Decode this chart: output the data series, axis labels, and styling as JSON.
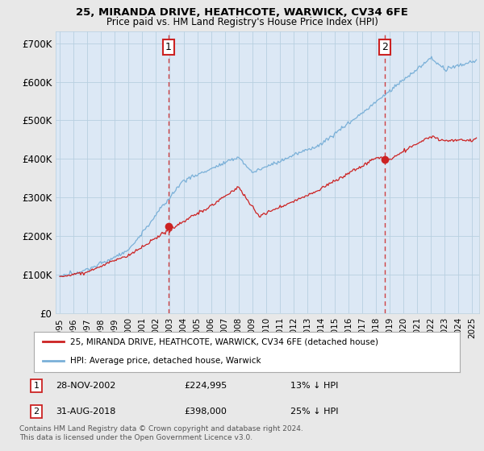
{
  "title": "25, MIRANDA DRIVE, HEATHCOTE, WARWICK, CV34 6FE",
  "subtitle": "Price paid vs. HM Land Registry's House Price Index (HPI)",
  "ylabel_ticks": [
    "£0",
    "£100K",
    "£200K",
    "£300K",
    "£400K",
    "£500K",
    "£600K",
    "£700K"
  ],
  "ytick_vals": [
    0,
    100000,
    200000,
    300000,
    400000,
    500000,
    600000,
    700000
  ],
  "ylim": [
    0,
    730000
  ],
  "xlim_start": 1994.7,
  "xlim_end": 2025.5,
  "background_color": "#e8e8e8",
  "plot_bg_color": "#dce8f5",
  "hpi_color": "#7ab0d8",
  "price_color": "#cc2222",
  "grid_color": "#b8cfe0",
  "legend_label_price": "25, MIRANDA DRIVE, HEATHCOTE, WARWICK, CV34 6FE (detached house)",
  "legend_label_hpi": "HPI: Average price, detached house, Warwick",
  "purchase1_date": "28-NOV-2002",
  "purchase1_price": "£224,995",
  "purchase1_hpi": "13% ↓ HPI",
  "purchase1_year": 2002.91,
  "purchase1_value": 224995,
  "purchase2_date": "31-AUG-2018",
  "purchase2_price": "£398,000",
  "purchase2_hpi": "25% ↓ HPI",
  "purchase2_year": 2018.66,
  "purchase2_value": 398000,
  "footnote": "Contains HM Land Registry data © Crown copyright and database right 2024.\nThis data is licensed under the Open Government Licence v3.0.",
  "xtick_years": [
    1995,
    1996,
    1997,
    1998,
    1999,
    2000,
    2001,
    2002,
    2003,
    2004,
    2005,
    2006,
    2007,
    2008,
    2009,
    2010,
    2011,
    2012,
    2013,
    2014,
    2015,
    2016,
    2017,
    2018,
    2019,
    2020,
    2021,
    2022,
    2023,
    2024,
    2025
  ]
}
